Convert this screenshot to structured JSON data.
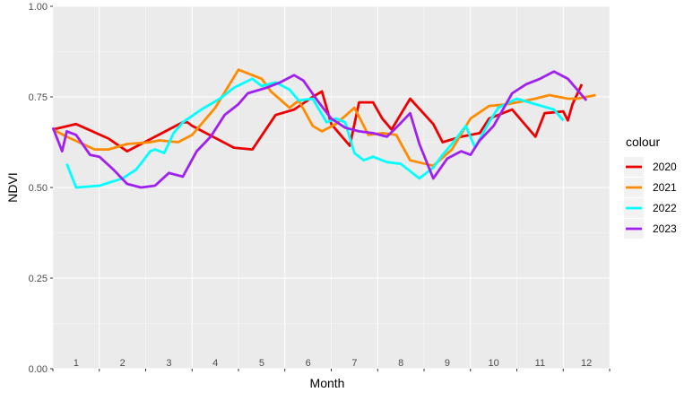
{
  "chart_data": {
    "type": "line",
    "xlabel": "Month",
    "ylabel": "NDVI",
    "xlim": [
      1,
      13
    ],
    "ylim": [
      0,
      1
    ],
    "y_ticks": [
      "0.00",
      "0.25",
      "0.50",
      "0.75",
      "1.00"
    ],
    "x_ticks": [
      "1",
      "2",
      "3",
      "4",
      "5",
      "6",
      "7",
      "8",
      "9",
      "10",
      "11",
      "12"
    ],
    "grid": true,
    "legend": {
      "title": "colour",
      "position": "right"
    },
    "series": [
      {
        "name": "2020",
        "color": "#ee0000",
        "x": [
          1.0,
          1.5,
          2.2,
          2.6,
          3.8,
          3.9,
          4.0,
          4.9,
          5.3,
          5.8,
          6.2,
          6.6,
          6.8,
          7.0,
          7.4,
          7.6,
          7.9,
          8.1,
          8.3,
          8.7,
          9.2,
          9.4,
          9.8,
          10.2,
          10.4,
          10.9,
          11.4,
          11.6,
          12.0,
          12.1,
          12.2,
          12.4
        ],
        "values": [
          0.66,
          0.675,
          0.635,
          0.6,
          0.68,
          0.68,
          0.67,
          0.61,
          0.605,
          0.7,
          0.715,
          0.75,
          0.765,
          0.675,
          0.615,
          0.735,
          0.735,
          0.69,
          0.66,
          0.745,
          0.675,
          0.625,
          0.64,
          0.65,
          0.69,
          0.715,
          0.64,
          0.705,
          0.71,
          0.685,
          0.73,
          0.785
        ]
      },
      {
        "name": "2021",
        "color": "#ff8c00",
        "x": [
          1.0,
          1.3,
          1.9,
          2.2,
          2.6,
          3.1,
          3.3,
          3.7,
          4.0,
          4.5,
          5.0,
          5.5,
          5.7,
          6.1,
          6.3,
          6.6,
          6.8,
          7.1,
          7.5,
          7.8,
          8.1,
          8.4,
          8.7,
          9.2,
          9.6,
          10.0,
          10.4,
          10.8,
          11.0,
          11.4,
          11.7,
          12.1,
          12.3,
          12.5,
          12.7
        ],
        "values": [
          0.66,
          0.64,
          0.605,
          0.605,
          0.62,
          0.625,
          0.63,
          0.625,
          0.645,
          0.72,
          0.825,
          0.8,
          0.765,
          0.72,
          0.74,
          0.67,
          0.655,
          0.675,
          0.72,
          0.645,
          0.65,
          0.645,
          0.575,
          0.56,
          0.605,
          0.69,
          0.725,
          0.73,
          0.735,
          0.745,
          0.755,
          0.745,
          0.745,
          0.75,
          0.755
        ]
      },
      {
        "name": "2022",
        "color": "#00ffff",
        "x": [
          1.3,
          1.5,
          2.0,
          2.5,
          2.8,
          3.1,
          3.2,
          3.4,
          3.6,
          3.8,
          4.2,
          4.6,
          4.9,
          5.3,
          5.5,
          5.8,
          6.1,
          6.3,
          6.6,
          6.9,
          7.1,
          7.3,
          7.5,
          7.7,
          7.9,
          8.2,
          8.5,
          8.9,
          9.2,
          9.4,
          9.6,
          9.9,
          10.1,
          10.4,
          10.6,
          11.0,
          11.4,
          11.8,
          12.0
        ],
        "values": [
          0.565,
          0.5,
          0.505,
          0.525,
          0.55,
          0.6,
          0.605,
          0.595,
          0.65,
          0.68,
          0.715,
          0.745,
          0.775,
          0.8,
          0.78,
          0.79,
          0.77,
          0.74,
          0.745,
          0.68,
          0.69,
          0.68,
          0.595,
          0.575,
          0.585,
          0.57,
          0.565,
          0.525,
          0.555,
          0.59,
          0.62,
          0.67,
          0.61,
          0.68,
          0.72,
          0.745,
          0.73,
          0.715,
          0.685
        ]
      },
      {
        "name": "2023",
        "color": "#a020f0",
        "x": [
          1.0,
          1.2,
          1.3,
          1.5,
          1.8,
          2.0,
          2.3,
          2.6,
          2.9,
          3.2,
          3.5,
          3.8,
          4.1,
          4.4,
          4.7,
          5.0,
          5.2,
          5.6,
          5.9,
          6.2,
          6.4,
          6.7,
          7.0,
          7.3,
          7.6,
          7.9,
          8.2,
          8.4,
          8.7,
          8.9,
          9.2,
          9.5,
          9.8,
          10.0,
          10.2,
          10.5,
          10.9,
          11.2,
          11.5,
          11.8,
          12.1,
          12.3,
          12.5
        ],
        "values": [
          0.665,
          0.6,
          0.655,
          0.645,
          0.59,
          0.585,
          0.55,
          0.51,
          0.5,
          0.505,
          0.54,
          0.53,
          0.6,
          0.64,
          0.7,
          0.73,
          0.76,
          0.775,
          0.79,
          0.81,
          0.795,
          0.74,
          0.69,
          0.665,
          0.655,
          0.65,
          0.64,
          0.665,
          0.705,
          0.62,
          0.525,
          0.58,
          0.6,
          0.59,
          0.63,
          0.67,
          0.76,
          0.785,
          0.8,
          0.82,
          0.8,
          0.77,
          0.74
        ]
      }
    ]
  }
}
